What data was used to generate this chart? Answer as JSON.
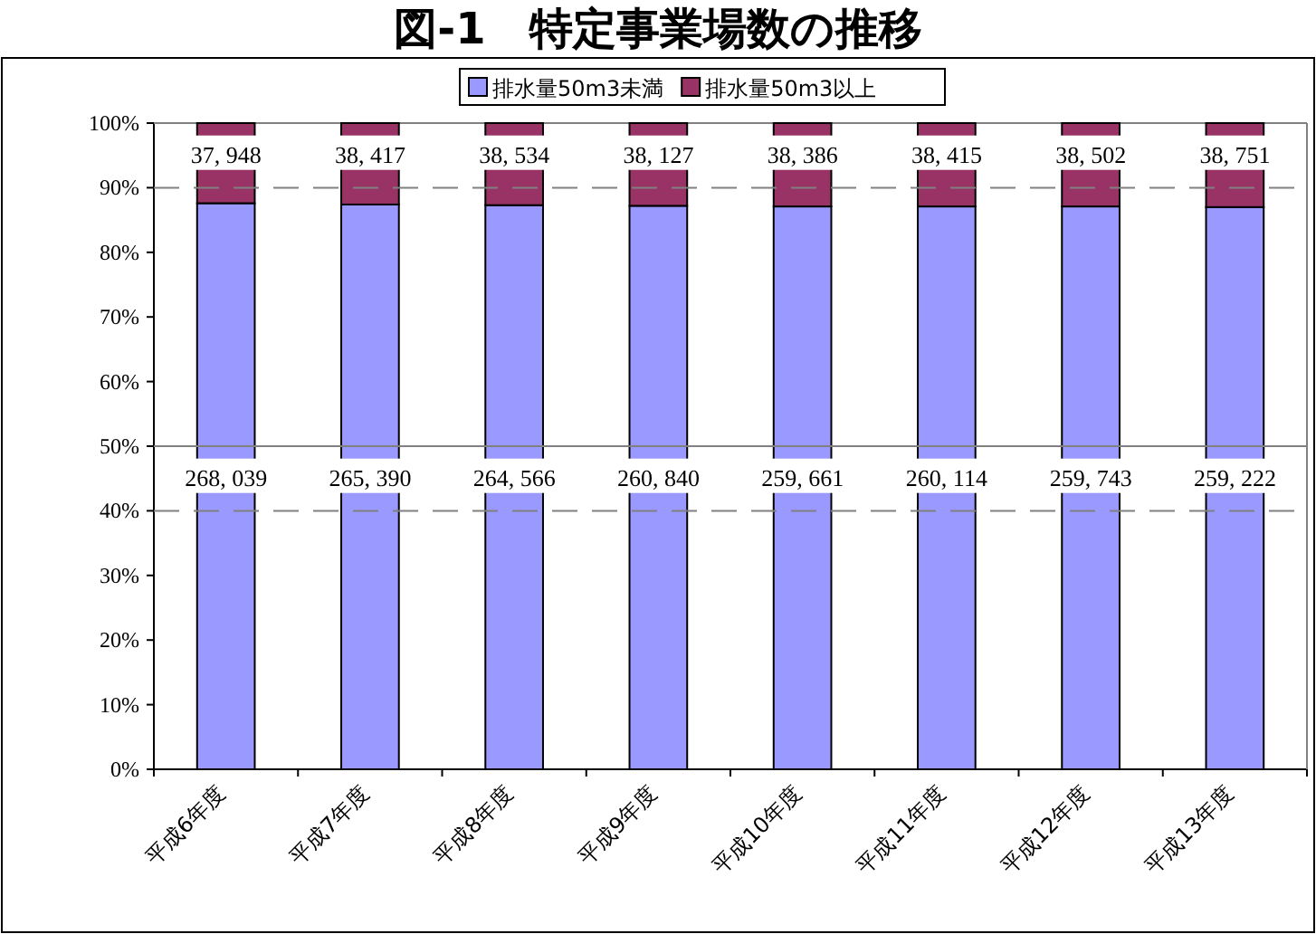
{
  "chart_data": {
    "type": "bar",
    "stacked": true,
    "title": "図-1　特定事業場数の推移",
    "categories": [
      "平成6年度",
      "平成7年度",
      "平成8年度",
      "平成9年度",
      "平成10年度",
      "平成11年度",
      "平成12年度",
      "平成13年度"
    ],
    "series": [
      {
        "name": "排水量50m3未満",
        "color": "#9999ff",
        "values": [
          87.6,
          87.4,
          87.3,
          87.2,
          87.1,
          87.1,
          87.1,
          87.0
        ]
      },
      {
        "name": "排水量50m3以上",
        "color": "#993366",
        "values": [
          12.4,
          12.6,
          12.7,
          12.8,
          12.9,
          12.9,
          12.9,
          13.0
        ]
      }
    ],
    "annotations": [
      "268, 039",
      "265, 390",
      "264, 566",
      "260, 840",
      "259, 661",
      "260, 114",
      "259, 743",
      "259, 222",
      "37, 948",
      "38, 417",
      "38, 534",
      "38, 127",
      "38, 386",
      "38, 415",
      "38, 502",
      "38, 751"
    ],
    "ylim": [
      0,
      100
    ],
    "yticks": [
      {
        "value": 0,
        "label": "0%"
      },
      {
        "value": 10,
        "label": "10%"
      },
      {
        "value": 20,
        "label": "20%"
      },
      {
        "value": 30,
        "label": "30%"
      },
      {
        "value": 40,
        "label": "40%"
      },
      {
        "value": 50,
        "label": "50%"
      },
      {
        "value": 60,
        "label": "60%"
      },
      {
        "value": 70,
        "label": "70%"
      },
      {
        "value": 80,
        "label": "80%"
      },
      {
        "value": 90,
        "label": "90%"
      },
      {
        "value": 100,
        "label": "100%"
      }
    ],
    "grid": false,
    "legend": "top",
    "ref_lines": [
      {
        "axis": "y",
        "value": 90,
        "line_style": "dashed",
        "color": "#808080"
      },
      {
        "axis": "y",
        "value": 40,
        "line_style": "dashed",
        "color": "#808080"
      },
      {
        "axis": "y",
        "value": 50,
        "line_style": "solid",
        "color": "#808080"
      }
    ]
  }
}
